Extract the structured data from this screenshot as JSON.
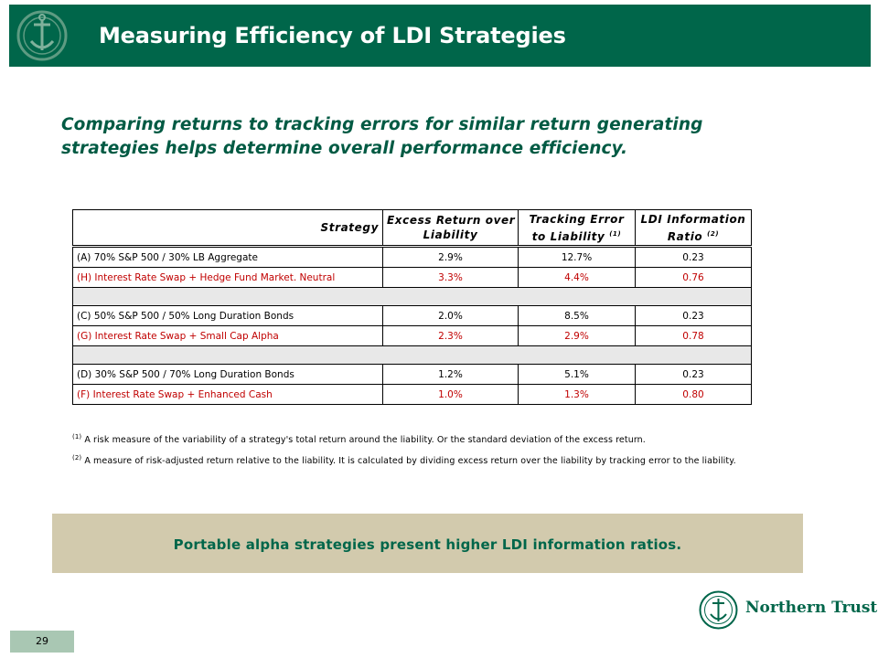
{
  "header": {
    "title": "Measuring Efficiency of LDI Strategies"
  },
  "subtitle": "Comparing returns to tracking errors for similar return generating strategies helps determine overall performance efficiency.",
  "table": {
    "headers": {
      "strategy": "Strategy",
      "excess_line1": "Excess Return over",
      "excess_line2": "Liability",
      "tracking_line1": "Tracking Error",
      "tracking_line2": "to Liability",
      "tracking_note": "(1)",
      "ratio_line1": "LDI Information",
      "ratio_line2": "Ratio",
      "ratio_note": "(2)"
    },
    "rows": [
      {
        "name": "(A) 70% S&P 500 / 30% LB Aggregate",
        "excess": "2.9%",
        "tracking": "12.7%",
        "ratio": "0.23"
      },
      {
        "name": "(H) Interest Rate Swap + Hedge Fund Market. Neutral",
        "excess": "3.3%",
        "tracking": "4.4%",
        "ratio": "0.76"
      },
      {
        "name": "(C) 50% S&P 500 / 50% Long Duration Bonds",
        "excess": "2.0%",
        "tracking": "8.5%",
        "ratio": "0.23"
      },
      {
        "name": "(G) Interest Rate Swap + Small Cap Alpha",
        "excess": "2.3%",
        "tracking": "2.9%",
        "ratio": "0.78"
      },
      {
        "name": "(D) 30% S&P 500 / 70% Long Duration Bonds",
        "excess": "1.2%",
        "tracking": "5.1%",
        "ratio": "0.23"
      },
      {
        "name": "(F) Interest Rate Swap + Enhanced Cash",
        "excess": "1.0%",
        "tracking": "1.3%",
        "ratio": "0.80"
      }
    ],
    "highlight_color": "#c00000"
  },
  "footnotes": {
    "note1_marker": "(1)",
    "note1": "A risk measure of the variability of a strategy's total return around the liability. Or the standard deviation of the excess return.",
    "note2_marker": "(2)",
    "note2": "A measure of  risk-adjusted return relative to the liability. It is calculated by dividing excess return over the liability by tracking error to the liability."
  },
  "callout": "Portable alpha strategies present higher LDI information ratios.",
  "brand": {
    "name": "Northern Trust",
    "color": "#00664a",
    "icon": "anchor-seal-logo"
  },
  "page_number": "29"
}
